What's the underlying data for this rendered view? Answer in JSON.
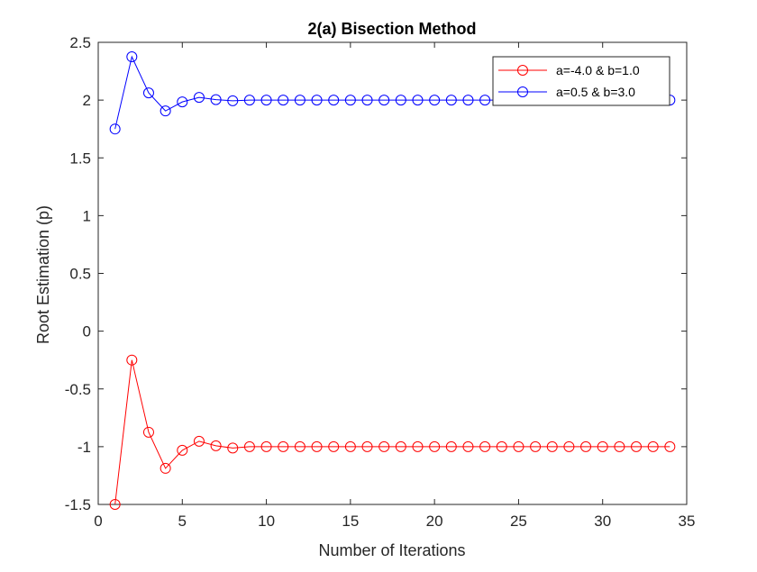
{
  "chart_data": {
    "type": "line",
    "title": "2(a) Bisection Method",
    "xlabel": "Number of Iterations",
    "ylabel": "Root Estimation (p)",
    "xlim": [
      0,
      35
    ],
    "ylim": [
      -1.5,
      2.5
    ],
    "xticks": [
      0,
      5,
      10,
      15,
      20,
      25,
      30,
      35
    ],
    "xtick_labels": [
      "0",
      "5",
      "10",
      "15",
      "20",
      "25",
      "30",
      "35"
    ],
    "yticks": [
      -1.5,
      -1,
      -0.5,
      0,
      0.5,
      1,
      1.5,
      2,
      2.5
    ],
    "ytick_labels": [
      "-1.5",
      "-1",
      "-0.5",
      "0",
      "0.5",
      "1",
      "1.5",
      "2",
      "2.5"
    ],
    "grid": false,
    "legend_position": "top-right",
    "marker": "circle",
    "series": [
      {
        "name": "a=-4.0 & b=1.0",
        "color": "#ff0000",
        "x": [
          1,
          2,
          3,
          4,
          5,
          6,
          7,
          8,
          9,
          10,
          11,
          12,
          13,
          14,
          15,
          16,
          17,
          18,
          19,
          20,
          21,
          22,
          23,
          24,
          25,
          26,
          27,
          28,
          29,
          30,
          31,
          32,
          33,
          34
        ],
        "values": [
          -1.5,
          -0.25,
          -0.875,
          -1.1875,
          -1.03125,
          -0.953125,
          -0.9921875,
          -1.01171875,
          -1.0,
          -1.0,
          -1.0,
          -1.0,
          -1.0,
          -1.0,
          -1.0,
          -1.0,
          -1.0,
          -1.0,
          -1.0,
          -1.0,
          -1.0,
          -1.0,
          -1.0,
          -1.0,
          -1.0,
          -1.0,
          -1.0,
          -1.0,
          -1.0,
          -1.0,
          -1.0,
          -1.0,
          -1.0,
          -1.0
        ]
      },
      {
        "name": "a=0.5 & b=3.0",
        "color": "#0000ff",
        "x": [
          1,
          2,
          3,
          4,
          5,
          6,
          7,
          8,
          9,
          10,
          11,
          12,
          13,
          14,
          15,
          16,
          17,
          18,
          19,
          20,
          21,
          22,
          23,
          24,
          25,
          26,
          27,
          28,
          29,
          30,
          31,
          32,
          33,
          34
        ],
        "values": [
          1.75,
          2.375,
          2.0625,
          1.90625,
          1.984375,
          2.0234375,
          2.00390625,
          1.99414063,
          2.0,
          2.0,
          2.0,
          2.0,
          2.0,
          2.0,
          2.0,
          2.0,
          2.0,
          2.0,
          2.0,
          2.0,
          2.0,
          2.0,
          2.0,
          2.0,
          2.0,
          2.0,
          2.0,
          2.0,
          2.0,
          2.0,
          2.0,
          2.0,
          2.0,
          2.0
        ]
      }
    ]
  }
}
